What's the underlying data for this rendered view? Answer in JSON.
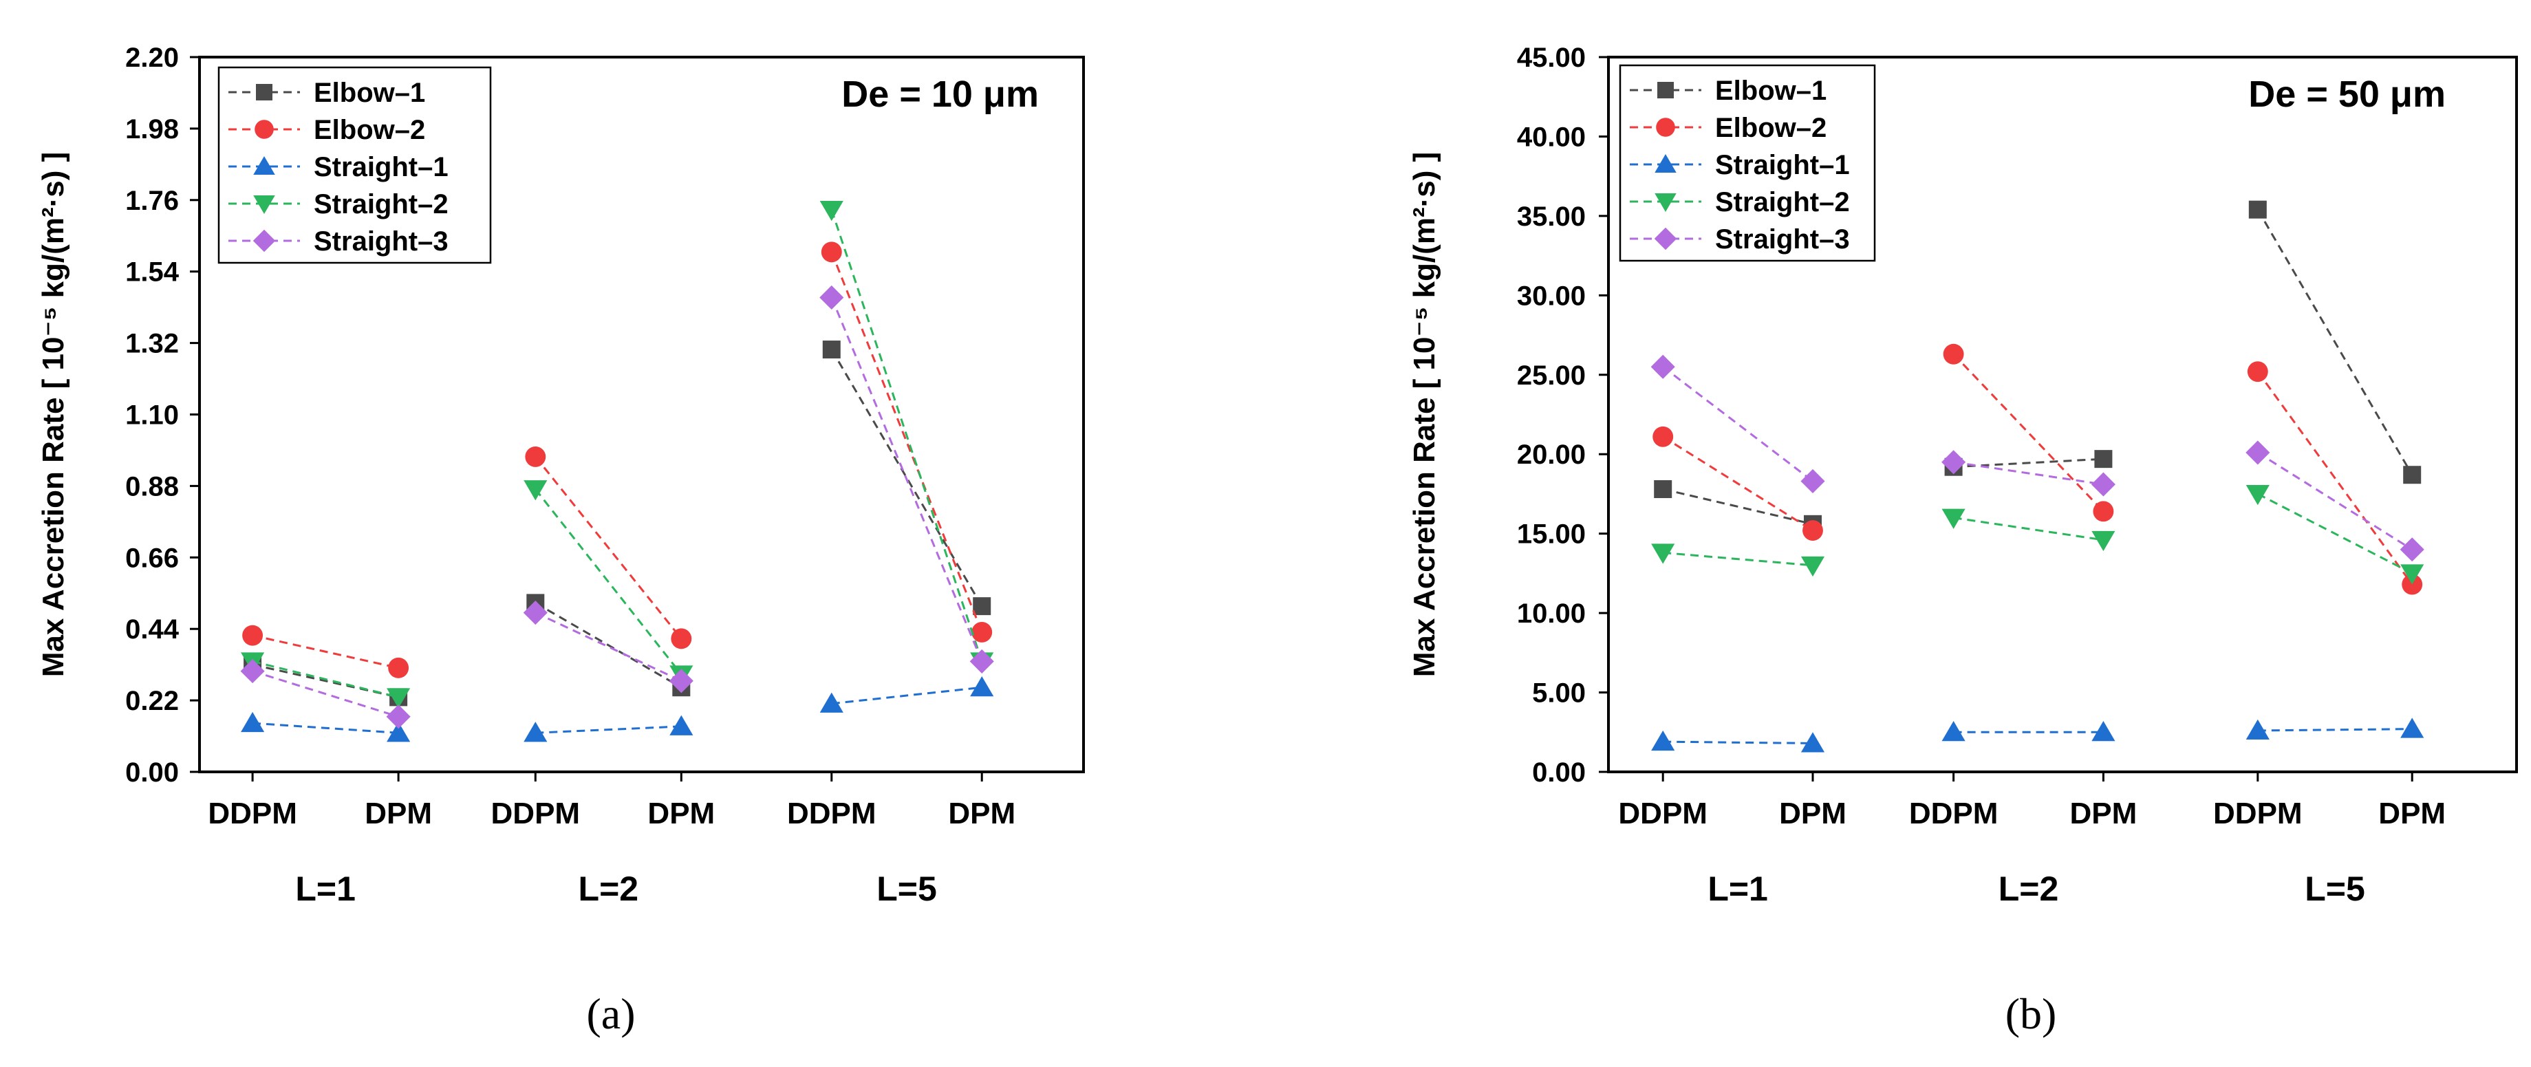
{
  "chart_data": [
    {
      "type": "line",
      "caption": "(a)",
      "annotation": "De = 10 μm",
      "ylabel": "Max Accretion Rate [ 10⁻⁵ kg/(m²·s) ]",
      "ylim": [
        0,
        2.2
      ],
      "yticks": [
        "0.00",
        "0.22",
        "0.44",
        "0.66",
        "0.88",
        "1.10",
        "1.32",
        "1.54",
        "1.76",
        "1.98",
        "2.20"
      ],
      "categories": [
        "DDPM",
        "DPM",
        "DDPM",
        "DPM",
        "DDPM",
        "DPM"
      ],
      "groups": [
        "L=1",
        "L=2",
        "L=5"
      ],
      "series": [
        {
          "name": "Elbow–1",
          "color": "#4a4a4a",
          "marker": "square",
          "values": [
            0.33,
            0.23,
            0.52,
            0.26,
            1.3,
            0.51
          ]
        },
        {
          "name": "Elbow–2",
          "color": "#ef3b3b",
          "marker": "circle",
          "values": [
            0.42,
            0.32,
            0.97,
            0.41,
            1.6,
            0.43
          ]
        },
        {
          "name": "Straight–1",
          "color": "#1f6fd1",
          "marker": "triangle-up",
          "values": [
            0.15,
            0.12,
            0.12,
            0.14,
            0.21,
            0.26
          ]
        },
        {
          "name": "Straight–2",
          "color": "#2bb55c",
          "marker": "triangle-down",
          "values": [
            0.34,
            0.23,
            0.87,
            0.3,
            1.73,
            0.34
          ]
        },
        {
          "name": "Straight–3",
          "color": "#b36be0",
          "marker": "diamond",
          "values": [
            0.31,
            0.17,
            0.49,
            0.28,
            1.46,
            0.34
          ]
        }
      ]
    },
    {
      "type": "line",
      "caption": "(b)",
      "annotation": "De = 50 μm",
      "ylabel": "Max Accretion Rate [ 10⁻⁵ kg/(m²·s) ]",
      "ylim": [
        0,
        45
      ],
      "yticks": [
        "0.00",
        "5.00",
        "10.00",
        "15.00",
        "20.00",
        "25.00",
        "30.00",
        "35.00",
        "40.00",
        "45.00"
      ],
      "categories": [
        "DDPM",
        "DPM",
        "DDPM",
        "DPM",
        "DDPM",
        "DPM"
      ],
      "groups": [
        "L=1",
        "L=2",
        "L=5"
      ],
      "series": [
        {
          "name": "Elbow–1",
          "color": "#4a4a4a",
          "marker": "square",
          "values": [
            17.8,
            15.6,
            19.2,
            19.7,
            35.4,
            18.7
          ]
        },
        {
          "name": "Elbow–2",
          "color": "#ef3b3b",
          "marker": "circle",
          "values": [
            21.1,
            15.2,
            26.3,
            16.4,
            25.2,
            11.8
          ]
        },
        {
          "name": "Straight–1",
          "color": "#1f6fd1",
          "marker": "triangle-up",
          "values": [
            1.9,
            1.8,
            2.5,
            2.5,
            2.6,
            2.7
          ]
        },
        {
          "name": "Straight–2",
          "color": "#2bb55c",
          "marker": "triangle-down",
          "values": [
            13.8,
            13.0,
            16.0,
            14.6,
            17.5,
            12.5
          ]
        },
        {
          "name": "Straight–3",
          "color": "#b36be0",
          "marker": "diamond",
          "values": [
            25.5,
            18.3,
            19.5,
            18.1,
            20.1,
            14.0
          ]
        }
      ]
    }
  ]
}
